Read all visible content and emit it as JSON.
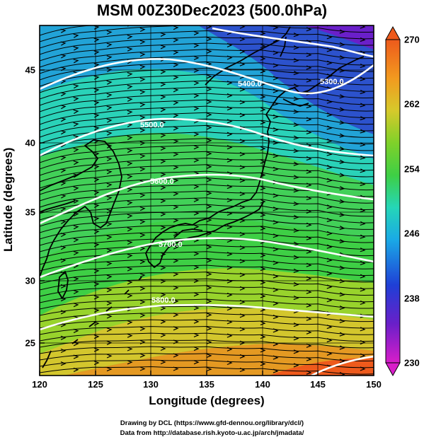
{
  "title": "MSM 00Z30Dec2023 (500.0hPa)",
  "axes": {
    "xlabel": "Longitude (degrees)",
    "ylabel": "Latitude  (degrees)",
    "x_ticks": [
      "120",
      "125",
      "130",
      "135",
      "140",
      "145",
      "150"
    ],
    "y_ticks": [
      "25",
      "30",
      "35",
      "40",
      "45"
    ],
    "xlim": [
      120,
      150
    ],
    "ylim": [
      22.4,
      47.6
    ]
  },
  "colorbar": {
    "ticks": [
      "270",
      "262",
      "254",
      "246",
      "238",
      "230"
    ],
    "range": [
      230,
      270
    ],
    "colors": [
      "#d81ec9",
      "#6a1fc9",
      "#1f3fd6",
      "#1aa9e6",
      "#25d6b8",
      "#3ecf45",
      "#7fd12a",
      "#d6c92b",
      "#f29a1f",
      "#ee5a1c"
    ]
  },
  "contours": {
    "labels": [
      "5300.0",
      "5400.0",
      "5500.0",
      "5600.0",
      "5700.0",
      "5800.0"
    ]
  },
  "credits": {
    "line1": "Drawing by DCL (https://www.gfd-dennou.org/library/dcl/)",
    "line2": "Data from http://database.rish.kyoto-u.ac.jp/arch/jmadata/"
  }
}
